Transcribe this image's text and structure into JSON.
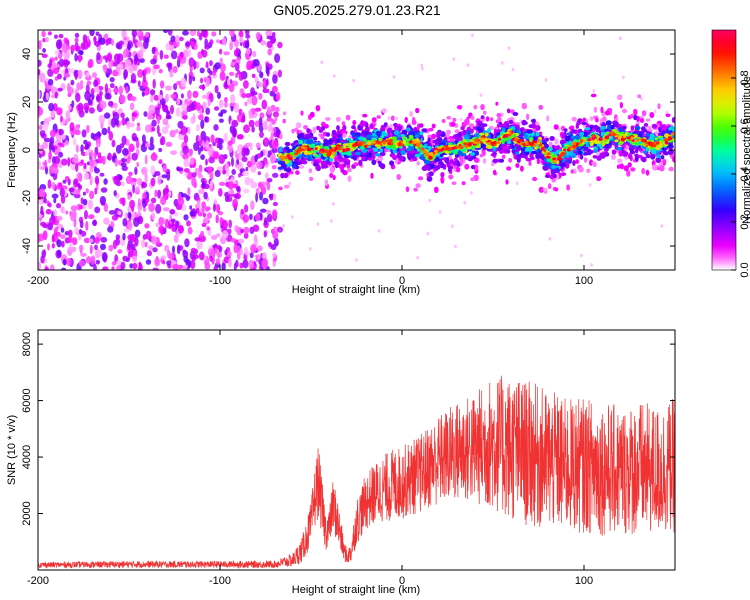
{
  "title": "GN05.2025.279.01.23.R21",
  "colors": {
    "snr_line": "#f03232",
    "colormap": [
      "#ffffff",
      "#ff00ff",
      "#9900ff",
      "#3300ff",
      "#0066ff",
      "#00ccff",
      "#00ff99",
      "#33ff00",
      "#ccff00",
      "#ffcc00",
      "#ff6600",
      "#ff0000",
      "#ff0066"
    ]
  },
  "chart_data": [
    {
      "type": "heatmap",
      "xlabel": "Height of straight line (km)",
      "ylabel": "Frequency (Hz)",
      "xlim": [
        -200,
        150
      ],
      "ylim": [
        -50,
        50
      ],
      "xticks": [
        -200,
        -100,
        0,
        100
      ],
      "yticks": [
        -40,
        -20,
        0,
        20,
        40
      ],
      "colorbar": {
        "label": "Normalized spectral amplitude",
        "range": [
          0,
          1
        ],
        "ticks": [
          0.0,
          0.2,
          0.4,
          0.6,
          0.8
        ]
      },
      "noise_region_x": [
        -200,
        -67
      ],
      "ridge": {
        "x": [
          -67,
          -60,
          -55,
          -50,
          -45,
          -40,
          -35,
          -30,
          -25,
          -20,
          -15,
          -10,
          -5,
          0,
          5,
          10,
          15,
          20,
          25,
          30,
          35,
          40,
          45,
          50,
          55,
          60,
          65,
          70,
          75,
          80,
          85,
          90,
          95,
          100,
          105,
          110,
          115,
          120,
          125,
          130,
          135,
          140,
          145,
          150
        ],
        "freq": [
          -3,
          -3,
          1,
          0,
          0,
          -1,
          1,
          0,
          3,
          2,
          3,
          3,
          3,
          3,
          4,
          2,
          -3,
          0,
          1,
          1,
          2,
          3,
          5,
          2,
          5,
          7,
          3,
          3,
          3,
          -2,
          -5,
          0,
          2,
          4,
          5,
          3,
          7,
          5,
          5,
          4,
          3,
          2,
          4,
          6
        ]
      }
    },
    {
      "type": "line",
      "xlabel": "Height of straight line (km)",
      "ylabel": "SNR (10 * v/v)",
      "xlim": [
        -200,
        150
      ],
      "ylim": [
        0,
        8500
      ],
      "xticks": [
        -200,
        -100,
        0,
        100
      ],
      "yticks": [
        2000,
        4000,
        6000,
        8000
      ],
      "series": [
        {
          "x": [
            -200,
            -150,
            -100,
            -70,
            -60,
            -55,
            -50,
            -48,
            -46,
            -44,
            -42,
            -40,
            -38,
            -36,
            -34,
            -32,
            -30,
            -28,
            -25,
            -20,
            -15,
            -10,
            -5,
            0,
            10,
            20,
            30,
            40,
            50,
            60,
            70,
            80,
            90,
            100,
            110,
            120,
            130,
            140,
            150
          ],
          "values": [
            180,
            200,
            200,
            200,
            350,
            700,
            1600,
            2500,
            3200,
            2200,
            1400,
            1500,
            2300,
            1900,
            1300,
            700,
            450,
            650,
            1700,
            2400,
            2700,
            2900,
            3000,
            3100,
            3400,
            3900,
            4200,
            4300,
            4500,
            4300,
            4100,
            3900,
            3700,
            3700,
            3600,
            3500,
            3600,
            3500,
            3700
          ],
          "spread": [
            100,
            120,
            120,
            130,
            250,
            450,
            800,
            1100,
            1300,
            1000,
            700,
            700,
            900,
            900,
            700,
            400,
            250,
            400,
            800,
            1000,
            1100,
            1200,
            1300,
            1300,
            1400,
            1600,
            1800,
            2000,
            2400,
            2600,
            2600,
            2500,
            2400,
            2400,
            2400,
            2300,
            2400,
            2300,
            2400
          ]
        }
      ]
    }
  ]
}
